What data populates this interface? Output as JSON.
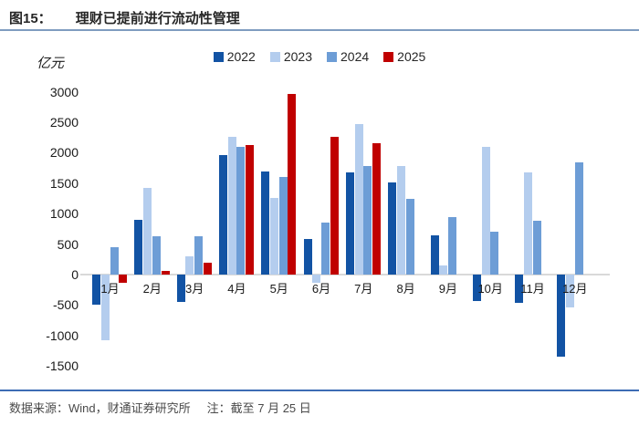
{
  "header": {
    "figure_label": "图15：",
    "title": "理财已提前进行流动性管理"
  },
  "footer": {
    "source": "数据来源：Wind，财通证券研究所",
    "note": "注：截至 7 月 25 日"
  },
  "colors": {
    "title_rule": "#7F9CC0",
    "footer_rule": "#3D6CB4",
    "zero_line": "#D9D9D9",
    "text": "#262626"
  },
  "chart_data": {
    "type": "bar",
    "title": "理财已提前进行流动性管理",
    "unit_label": "亿元",
    "xlabel": "",
    "ylabel": "亿元",
    "ylim": [
      -1500,
      3000
    ],
    "y_ticks": [
      3000,
      2500,
      2000,
      1500,
      1000,
      500,
      0,
      -500,
      -1000,
      -1500
    ],
    "grid": false,
    "legend_position": "top",
    "categories": [
      "1月",
      "2月",
      "3月",
      "4月",
      "5月",
      "6月",
      "7月",
      "8月",
      "9月",
      "10月",
      "11月",
      "12月"
    ],
    "series": [
      {
        "name": "2022",
        "color": "#1253A4",
        "values": [
          -490,
          900,
          -450,
          1960,
          1690,
          590,
          1670,
          1510,
          640,
          -430,
          -460,
          -1350
        ]
      },
      {
        "name": "2023",
        "color": "#B4CDEE",
        "values": [
          -1080,
          1420,
          300,
          2260,
          1260,
          -130,
          2470,
          1780,
          150,
          2090,
          1680,
          -540
        ]
      },
      {
        "name": "2024",
        "color": "#6D9DD6",
        "values": [
          450,
          630,
          630,
          2090,
          1610,
          850,
          1780,
          1240,
          940,
          700,
          890,
          1840
        ]
      },
      {
        "name": "2025",
        "color": "#C00000",
        "values": [
          -130,
          60,
          190,
          2120,
          2960,
          2260,
          2150,
          null,
          null,
          null,
          null,
          null
        ]
      }
    ]
  }
}
